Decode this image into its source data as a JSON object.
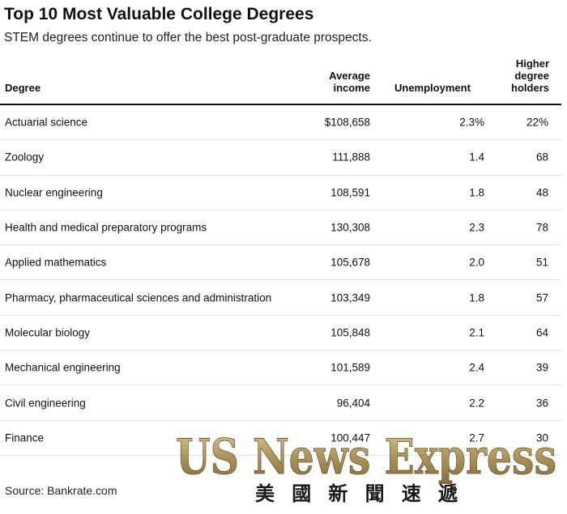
{
  "title": "Top 10 Most Valuable College Degrees",
  "subtitle": "STEM degrees continue to offer the best post-graduate prospects.",
  "source": "Source: Bankrate.com",
  "watermark": {
    "latin": "US News Express",
    "cjk": "美國新聞速遞"
  },
  "chart_data": {
    "type": "table",
    "columns": [
      "Degree",
      "Average income",
      "Unemployment",
      "Higher degree holders"
    ],
    "headers": {
      "degree": "Degree",
      "income_line1": "Average",
      "income_line2": "income",
      "unemployment": "Unemployment",
      "higher_line1": "Higher",
      "higher_line2": "degree",
      "higher_line3": "holders"
    },
    "rows": [
      {
        "degree": "Actuarial science",
        "income": "$108,658",
        "unemployment": "2.3%",
        "higher": "22%"
      },
      {
        "degree": "Zoology",
        "income": "111,888",
        "unemployment": "1.4",
        "higher": "68"
      },
      {
        "degree": "Nuclear engineering",
        "income": "108,591",
        "unemployment": "1.8",
        "higher": "48"
      },
      {
        "degree": "Health and medical preparatory programs",
        "income": "130,308",
        "unemployment": "2.3",
        "higher": "78"
      },
      {
        "degree": "Applied mathematics",
        "income": "105,678",
        "unemployment": "2.0",
        "higher": "51"
      },
      {
        "degree": "Pharmacy, pharmaceutical sciences and administration",
        "income": "103,349",
        "unemployment": "1.8",
        "higher": "57"
      },
      {
        "degree": "Molecular biology",
        "income": "105,848",
        "unemployment": "2.1",
        "higher": "64"
      },
      {
        "degree": "Mechanical engineering",
        "income": "101,589",
        "unemployment": "2.4",
        "higher": "39"
      },
      {
        "degree": "Civil engineering",
        "income": "96,404",
        "unemployment": "2.2",
        "higher": "36"
      },
      {
        "degree": "Finance",
        "income": "100,447",
        "unemployment": "2.7",
        "higher": "30"
      }
    ]
  }
}
